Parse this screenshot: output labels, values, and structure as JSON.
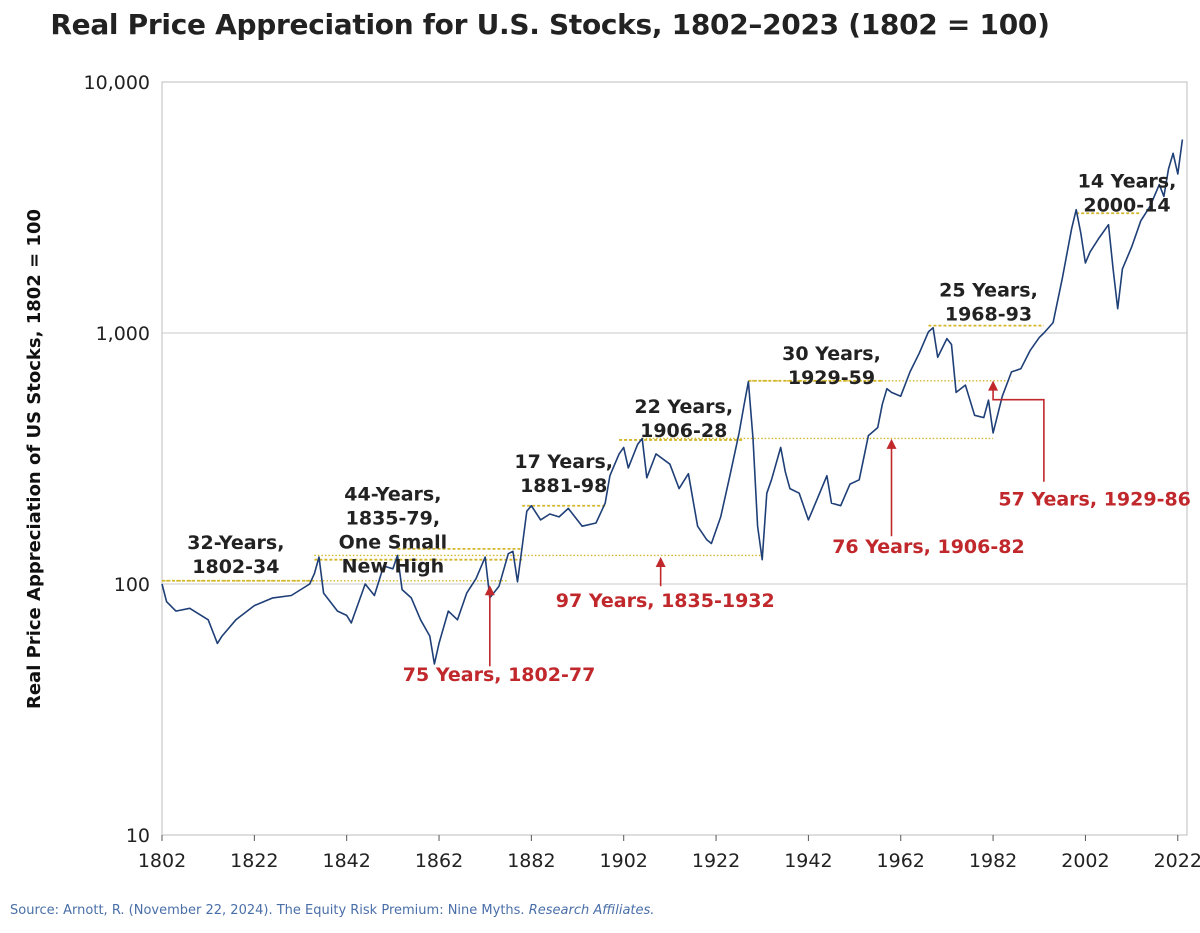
{
  "chart_data": {
    "type": "line",
    "title": "Real Price Appreciation for U.S. Stocks, 1802–2023 (1802 = 100)",
    "ylabel": "Real Price Appreciation of US Stocks, 1802 = 100",
    "xlabel": "",
    "y_scale": "log",
    "ylim": [
      10,
      10000
    ],
    "xlim": [
      1802,
      2024
    ],
    "x_ticks": [
      1802,
      1822,
      1842,
      1862,
      1882,
      1902,
      1922,
      1942,
      1962,
      1982,
      2002,
      2022
    ],
    "x_tick_labels": [
      "1802",
      "1822",
      "1842",
      "1862",
      "1882",
      "1902",
      "1922",
      "1942",
      "1962",
      "1982",
      "2002",
      "2022"
    ],
    "y_ticks": [
      10,
      100,
      1000,
      10000
    ],
    "y_tick_labels": [
      "10",
      "100",
      "1,000",
      "10,000"
    ],
    "grid": "horizontal at 100 and 1,000",
    "line_color": "#1f3f77",
    "series": [
      {
        "x": [
          1802,
          1803,
          1805,
          1808,
          1812,
          1814,
          1815,
          1818,
          1822,
          1826,
          1830,
          1834,
          1835,
          1836,
          1837,
          1840,
          1842,
          1843,
          1846,
          1848,
          1850,
          1852,
          1853,
          1854,
          1856,
          1858,
          1860,
          1861,
          1862,
          1864,
          1866,
          1868,
          1870,
          1872,
          1873,
          1875,
          1877,
          1878,
          1879,
          1880,
          1881,
          1882,
          1884,
          1886,
          1888,
          1890,
          1893,
          1896,
          1898,
          1899,
          1901,
          1902,
          1903,
          1905,
          1906,
          1907,
          1909,
          1912,
          1914,
          1916,
          1918,
          1920,
          1921,
          1923,
          1925,
          1927,
          1928,
          1929,
          1930,
          1931,
          1932,
          1933,
          1934,
          1936,
          1937,
          1938,
          1940,
          1942,
          1944,
          1946,
          1947,
          1949,
          1951,
          1953,
          1955,
          1957,
          1958,
          1959,
          1960,
          1962,
          1964,
          1966,
          1968,
          1969,
          1970,
          1972,
          1973,
          1974,
          1976,
          1978,
          1980,
          1981,
          1982,
          1984,
          1986,
          1988,
          1990,
          1992,
          1993,
          1995,
          1997,
          1999,
          2000,
          2001,
          2002,
          2003,
          2005,
          2007,
          2008,
          2009,
          2010,
          2012,
          2014,
          2016,
          2018,
          2019,
          2020,
          2021,
          2022,
          2023
        ],
        "y": [
          100,
          85,
          78,
          80,
          72,
          58,
          62,
          72,
          82,
          88,
          90,
          100,
          110,
          128,
          92,
          78,
          75,
          70,
          100,
          90,
          118,
          115,
          130,
          95,
          88,
          72,
          62,
          48,
          58,
          78,
          72,
          92,
          105,
          128,
          88,
          98,
          132,
          135,
          102,
          140,
          195,
          205,
          180,
          190,
          185,
          200,
          170,
          175,
          210,
          270,
          330,
          350,
          290,
          360,
          380,
          265,
          330,
          300,
          240,
          275,
          170,
          150,
          145,
          185,
          270,
          400,
          510,
          640,
          380,
          170,
          125,
          230,
          260,
          350,
          280,
          240,
          230,
          180,
          220,
          270,
          210,
          205,
          250,
          260,
          390,
          420,
          520,
          600,
          580,
          560,
          700,
          830,
          1010,
          1050,
          800,
          950,
          900,
          580,
          620,
          470,
          460,
          540,
          400,
          560,
          700,
          720,
          850,
          960,
          1000,
          1100,
          1650,
          2600,
          3100,
          2500,
          1900,
          2100,
          2400,
          2700,
          1800,
          1250,
          1800,
          2200,
          2800,
          3200,
          3900,
          3500,
          4500,
          5200,
          4300,
          5900
        ]
      }
    ],
    "prior_high_lines": [
      {
        "from": 1802,
        "to": 1835,
        "level": 103
      },
      {
        "from": 1835,
        "to": 1880,
        "level": 125
      },
      {
        "from": 1853,
        "to": 1880,
        "level": 138
      },
      {
        "from": 1880,
        "to": 1898,
        "level": 205
      },
      {
        "from": 1901,
        "to": 1928,
        "level": 375
      },
      {
        "from": 1929,
        "to": 1958,
        "level": 645
      },
      {
        "from": 1968,
        "to": 1993,
        "level": 1070
      },
      {
        "from": 2000,
        "to": 2014,
        "level": 3000
      }
    ],
    "recovery_lines": [
      {
        "from": 1802,
        "to": 1877,
        "level": 103
      },
      {
        "from": 1835,
        "to": 1932,
        "level": 130
      },
      {
        "from": 1906,
        "to": 1982,
        "level": 380
      },
      {
        "from": 1929,
        "to": 1986,
        "level": 645
      }
    ],
    "annotations": [
      {
        "lines": [
          "32-Years,",
          "1802-34"
        ],
        "color": "black",
        "x": 1818,
        "y": 138
      },
      {
        "lines": [
          "44-Years,",
          "1835-79,",
          "One Small",
          "New High"
        ],
        "color": "black",
        "x": 1852,
        "y": 215
      },
      {
        "lines": [
          "17 Years,",
          "1881-98"
        ],
        "color": "black",
        "x": 1889,
        "y": 290
      },
      {
        "lines": [
          "22 Years,",
          "1906-28"
        ],
        "color": "black",
        "x": 1915,
        "y": 480
      },
      {
        "lines": [
          "30 Years,",
          "1929-59"
        ],
        "color": "black",
        "x": 1947,
        "y": 780
      },
      {
        "lines": [
          "25 Years,",
          "1968-93"
        ],
        "color": "black",
        "x": 1981,
        "y": 1400
      },
      {
        "lines": [
          "14 Years,",
          "2000-14"
        ],
        "color": "black",
        "x": 2011,
        "y": 3800
      },
      {
        "lines": [
          "75 Years, 1802-77"
        ],
        "color": "red",
        "x": 1875,
        "y": 41,
        "arrow_x": 1873,
        "arrow_from": 47,
        "arrow_to": 98
      },
      {
        "lines": [
          "97 Years, 1835-1932"
        ],
        "color": "red",
        "x": 1911,
        "y": 81,
        "arrow_x": 1910,
        "arrow_from": 98,
        "arrow_to": 127
      },
      {
        "lines": [
          "76 Years, 1906-82"
        ],
        "color": "red",
        "x": 1968,
        "y": 133,
        "arrow_x": 1960,
        "arrow_from": 155,
        "arrow_to": 375
      },
      {
        "lines": [
          "57 Years, 1929-86"
        ],
        "color": "red",
        "x": 2004,
        "y": 205,
        "arrow_x": 1982,
        "arrow_from": 390,
        "arrow_to": 640,
        "elbow_x": 1993
      }
    ]
  },
  "source": {
    "prefix": "Source: Arnott, R. (November 22, 2024). The Equity Risk Premium: Nine Myths. ",
    "publisher": "Research Affiliates."
  }
}
